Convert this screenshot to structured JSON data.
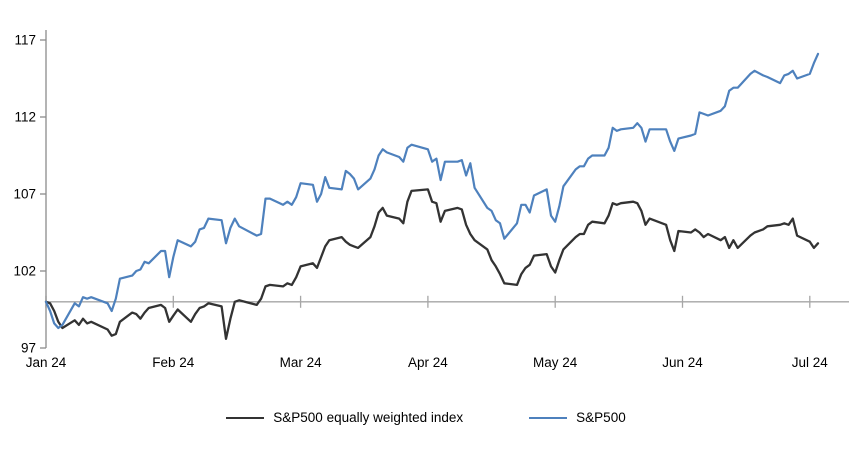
{
  "chart_data": {
    "type": "line",
    "title": "",
    "xlabel": "",
    "ylabel": "",
    "x_tick_labels": [
      "Jan 24",
      "Feb 24",
      "Mar 24",
      "Apr 24",
      "May 24",
      "Jun 24",
      "Jul 24"
    ],
    "y_ticks": [
      97,
      102,
      107,
      112,
      117
    ],
    "ylim": [
      97,
      118
    ],
    "baseline_value": 100,
    "grid": false,
    "legend_position": "bottom",
    "dates": [
      "12-29",
      "01-02",
      "01-03",
      "01-04",
      "01-05",
      "01-08",
      "01-09",
      "01-10",
      "01-11",
      "01-12",
      "01-16",
      "01-17",
      "01-18",
      "01-19",
      "01-22",
      "01-23",
      "01-24",
      "01-25",
      "01-26",
      "01-29",
      "01-30",
      "01-31",
      "02-01",
      "02-02",
      "02-05",
      "02-06",
      "02-07",
      "02-08",
      "02-09",
      "02-12",
      "02-13",
      "02-14",
      "02-15",
      "02-16",
      "02-20",
      "02-21",
      "02-22",
      "02-23",
      "02-26",
      "02-27",
      "02-28",
      "02-29",
      "03-01",
      "03-04",
      "03-05",
      "03-06",
      "03-07",
      "03-08",
      "03-11",
      "03-12",
      "03-13",
      "03-14",
      "03-15",
      "03-18",
      "03-19",
      "03-20",
      "03-21",
      "03-22",
      "03-25",
      "03-26",
      "03-27",
      "03-28",
      "04-01",
      "04-02",
      "04-03",
      "04-04",
      "04-05",
      "04-08",
      "04-09",
      "04-10",
      "04-11",
      "04-12",
      "04-15",
      "04-16",
      "04-17",
      "04-18",
      "04-19",
      "04-22",
      "04-23",
      "04-24",
      "04-25",
      "04-26",
      "04-29",
      "04-30",
      "05-01",
      "05-02",
      "05-03",
      "05-06",
      "05-07",
      "05-08",
      "05-09",
      "05-10",
      "05-13",
      "05-14",
      "05-15",
      "05-16",
      "05-17",
      "05-20",
      "05-21",
      "05-22",
      "05-23",
      "05-24",
      "05-28",
      "05-29",
      "05-30",
      "05-31",
      "06-03",
      "06-04",
      "06-05",
      "06-06",
      "06-07",
      "06-10",
      "06-11",
      "06-12",
      "06-13",
      "06-14",
      "06-17",
      "06-18",
      "06-20",
      "06-21",
      "06-24",
      "06-25",
      "06-26",
      "06-27",
      "06-28",
      "07-01",
      "07-02",
      "07-03"
    ],
    "series": [
      {
        "name": "S&P500 equally weighted index",
        "color": "#333333",
        "values": [
          100,
          99.9,
          99.4,
          98.7,
          98.3,
          98.8,
          98.5,
          98.9,
          98.6,
          98.7,
          98.2,
          97.8,
          97.9,
          98.7,
          99.3,
          99.2,
          98.9,
          99.3,
          99.6,
          99.8,
          99.6,
          98.7,
          99.1,
          99.5,
          98.7,
          99.2,
          99.6,
          99.7,
          99.9,
          99.7,
          97.6,
          98.9,
          100.0,
          100.1,
          99.8,
          100.2,
          101.0,
          101.1,
          101.0,
          101.2,
          101.1,
          101.6,
          102.3,
          102.5,
          102.2,
          102.9,
          103.6,
          104.0,
          104.2,
          103.9,
          103.7,
          103.6,
          103.5,
          104.2,
          104.9,
          105.8,
          106.1,
          105.6,
          105.4,
          105.1,
          106.5,
          107.2,
          107.3,
          106.5,
          106.4,
          105.2,
          105.9,
          106.1,
          106.0,
          105.0,
          104.4,
          104.0,
          103.4,
          102.7,
          102.3,
          101.8,
          101.2,
          101.1,
          101.8,
          102.2,
          102.4,
          103.0,
          103.1,
          102.3,
          101.9,
          102.7,
          103.4,
          104.2,
          104.4,
          104.4,
          105.0,
          105.2,
          105.1,
          105.6,
          106.4,
          106.3,
          106.4,
          106.5,
          106.4,
          105.9,
          105.0,
          105.4,
          105.0,
          104.0,
          103.3,
          104.6,
          104.5,
          104.7,
          104.5,
          104.2,
          104.4,
          104.0,
          104.2,
          103.5,
          104.0,
          103.5,
          104.3,
          104.5,
          104.7,
          104.9,
          105.0,
          105.1,
          105.0,
          105.4,
          104.3,
          103.9,
          103.5,
          103.8
        ]
      },
      {
        "name": "S&P500",
        "color": "#4E81BD",
        "values": [
          100,
          99.4,
          98.6,
          98.3,
          98.5,
          99.9,
          99.7,
          100.3,
          100.2,
          100.3,
          99.9,
          99.4,
          100.2,
          101.5,
          101.7,
          102.0,
          102.1,
          102.6,
          102.5,
          103.3,
          103.3,
          101.6,
          102.9,
          104.0,
          103.6,
          103.9,
          104.7,
          104.8,
          105.4,
          105.3,
          103.8,
          104.8,
          105.4,
          104.9,
          104.3,
          104.4,
          106.7,
          106.7,
          106.3,
          106.5,
          106.3,
          106.8,
          107.7,
          107.6,
          106.5,
          107.0,
          108.1,
          107.4,
          107.3,
          108.5,
          108.3,
          108.0,
          107.3,
          108.0,
          108.6,
          109.5,
          109.9,
          109.7,
          109.4,
          109.1,
          110.0,
          110.2,
          109.9,
          109.1,
          109.3,
          107.9,
          109.1,
          109.1,
          109.2,
          108.2,
          109.0,
          107.4,
          106.1,
          105.9,
          105.3,
          105.1,
          104.1,
          105.1,
          106.3,
          106.3,
          105.8,
          106.9,
          107.3,
          105.6,
          105.2,
          106.2,
          107.5,
          108.6,
          108.8,
          108.8,
          109.3,
          109.5,
          109.5,
          110.0,
          111.3,
          111.1,
          111.2,
          111.3,
          111.6,
          111.3,
          110.4,
          111.2,
          111.2,
          110.4,
          109.8,
          110.6,
          110.8,
          110.9,
          112.3,
          112.2,
          112.1,
          112.4,
          112.7,
          113.7,
          113.9,
          113.9,
          114.8,
          115.0,
          114.7,
          114.6,
          114.2,
          114.7,
          114.8,
          115.0,
          114.5,
          114.8,
          115.5,
          116.1
        ]
      }
    ]
  },
  "colors": {
    "axis": "#8C8C8C",
    "baseline": "#A6A6A6",
    "tick_text": "#000000"
  }
}
